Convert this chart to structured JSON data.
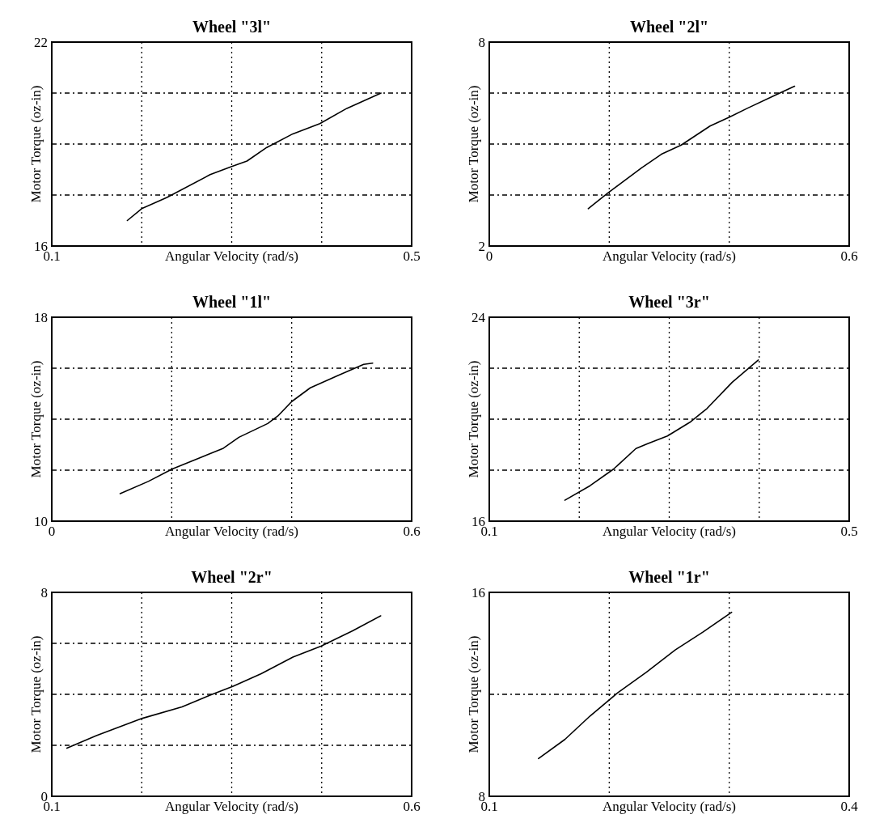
{
  "chart_data": [
    {
      "type": "line",
      "title": "Wheel  \"3l\"",
      "xlabel": "Angular Velocity (rad/s)",
      "ylabel": "Motor Torque (oz-in)",
      "xlim": [
        0.1,
        0.5
      ],
      "xticks": [
        0.1,
        {
          "value": 0.2,
          "label": null
        },
        {
          "value": 0.3,
          "label": null
        },
        {
          "value": 0.4,
          "label": null
        },
        0.5
      ],
      "ylim": [
        16,
        22
      ],
      "yticks": [
        16,
        {
          "value": 17.5,
          "label": null
        },
        {
          "value": 19,
          "label": null
        },
        {
          "value": 20.5,
          "label": null
        },
        22
      ],
      "grid": true,
      "line_style": "solid",
      "x": [
        0.184,
        0.2,
        0.228,
        0.276,
        0.3,
        0.317,
        0.339,
        0.368,
        0.398,
        0.428,
        0.466
      ],
      "series": [
        {
          "color": "#000000",
          "values": [
            16.75,
            17.1,
            17.43,
            18.1,
            18.34,
            18.5,
            18.9,
            19.3,
            19.6,
            20.05,
            20.5
          ]
        }
      ]
    },
    {
      "type": "line",
      "title": "Wheel  \"2l\"",
      "xlabel": "Angular Velocity (rad/s)",
      "ylabel": "Motor Torque (oz-in)",
      "xlim": [
        0,
        0.6
      ],
      "xticks": [
        0,
        {
          "value": 0.2,
          "label": null
        },
        {
          "value": 0.4,
          "label": null
        },
        0.6
      ],
      "ylim": [
        2,
        8
      ],
      "yticks": [
        2,
        {
          "value": 3.5,
          "label": null
        },
        {
          "value": 5,
          "label": null
        },
        {
          "value": 6.5,
          "label": null
        },
        8
      ],
      "grid": true,
      "line_style": "solid",
      "x": [
        0.165,
        0.197,
        0.254,
        0.287,
        0.32,
        0.368,
        0.401,
        0.43,
        0.477,
        0.509
      ],
      "series": [
        {
          "color": "#000000",
          "values": [
            3.1,
            3.55,
            4.3,
            4.7,
            4.97,
            5.53,
            5.8,
            6.05,
            6.44,
            6.7
          ]
        }
      ]
    },
    {
      "type": "line",
      "title": "Wheel  \"1l\"",
      "xlabel": "Angular Velocity (rad/s)",
      "ylabel": "Motor Torque (oz-in)",
      "xlim": [
        0,
        0.6
      ],
      "xticks": [
        0,
        {
          "value": 0.2,
          "label": null
        },
        {
          "value": 0.4,
          "label": null
        },
        0.6
      ],
      "ylim": [
        10,
        18
      ],
      "yticks": [
        10,
        {
          "value": 12,
          "label": null
        },
        {
          "value": 14,
          "label": null
        },
        {
          "value": 16,
          "label": null
        },
        18
      ],
      "grid": true,
      "line_style": "solid",
      "x": [
        0.114,
        0.161,
        0.201,
        0.241,
        0.286,
        0.312,
        0.36,
        0.378,
        0.4,
        0.431,
        0.478,
        0.52,
        0.535
      ],
      "series": [
        {
          "color": "#000000",
          "values": [
            11.08,
            11.56,
            12.05,
            12.43,
            12.86,
            13.29,
            13.83,
            14.15,
            14.69,
            15.23,
            15.72,
            16.15,
            16.2
          ]
        }
      ]
    },
    {
      "type": "line",
      "title": "Wheel  \"3r\"",
      "xlabel": "Angular Velocity (rad/s)",
      "ylabel": "Motor Torque (oz-in)",
      "xlim": [
        0.1,
        0.5
      ],
      "xticks": [
        0.1,
        {
          "value": 0.2,
          "label": null
        },
        {
          "value": 0.3,
          "label": null
        },
        {
          "value": 0.4,
          "label": null
        },
        0.5
      ],
      "ylim": [
        16,
        24
      ],
      "yticks": [
        16,
        {
          "value": 18,
          "label": null
        },
        {
          "value": 20,
          "label": null
        },
        {
          "value": 22,
          "label": null
        },
        24
      ],
      "grid": true,
      "line_style": "solid",
      "x": [
        0.184,
        0.212,
        0.238,
        0.263,
        0.276,
        0.298,
        0.323,
        0.342,
        0.37,
        0.399
      ],
      "series": [
        {
          "color": "#000000",
          "values": [
            16.82,
            17.39,
            18.04,
            18.85,
            19.04,
            19.34,
            19.88,
            20.42,
            21.45,
            22.32
          ]
        }
      ]
    },
    {
      "type": "line",
      "title": "Wheel  \"2r\"",
      "xlabel": "Angular Velocity (rad/s)",
      "ylabel": "Motor Torque (oz-in)",
      "xlim": [
        0.1,
        0.6
      ],
      "xticks": [
        0.1,
        {
          "value": 0.225,
          "label": null
        },
        {
          "value": 0.35,
          "label": null
        },
        {
          "value": 0.475,
          "label": null
        },
        0.6
      ],
      "ylim": [
        0,
        8
      ],
      "yticks": [
        0,
        {
          "value": 2,
          "label": null
        },
        {
          "value": 4,
          "label": null
        },
        {
          "value": 6,
          "label": null
        },
        8
      ],
      "grid": true,
      "line_style": "solid",
      "x": [
        0.121,
        0.162,
        0.226,
        0.281,
        0.32,
        0.352,
        0.391,
        0.435,
        0.474,
        0.518,
        0.557
      ],
      "series": [
        {
          "color": "#000000",
          "values": [
            1.89,
            2.38,
            3.06,
            3.51,
            3.97,
            4.32,
            4.81,
            5.46,
            5.89,
            6.49,
            7.08
          ]
        }
      ]
    },
    {
      "type": "line",
      "title": "Wheel  \"1r\"",
      "xlabel": "Angular Velocity (rad/s)",
      "ylabel": "Motor Torque (oz-in)",
      "xlim": [
        0.1,
        0.4
      ],
      "xticks": [
        0.1,
        {
          "value": 0.2,
          "label": null
        },
        {
          "value": 0.3,
          "label": null
        },
        0.4
      ],
      "ylim": [
        8,
        16
      ],
      "yticks": [
        8,
        {
          "value": 12,
          "label": null
        },
        16
      ],
      "grid": true,
      "line_style": "solid",
      "x": [
        0.141,
        0.163,
        0.184,
        0.207,
        0.231,
        0.255,
        0.278,
        0.302
      ],
      "series": [
        {
          "color": "#000000",
          "values": [
            9.48,
            10.23,
            11.15,
            12.06,
            12.87,
            13.74,
            14.44,
            15.22
          ]
        }
      ]
    }
  ]
}
